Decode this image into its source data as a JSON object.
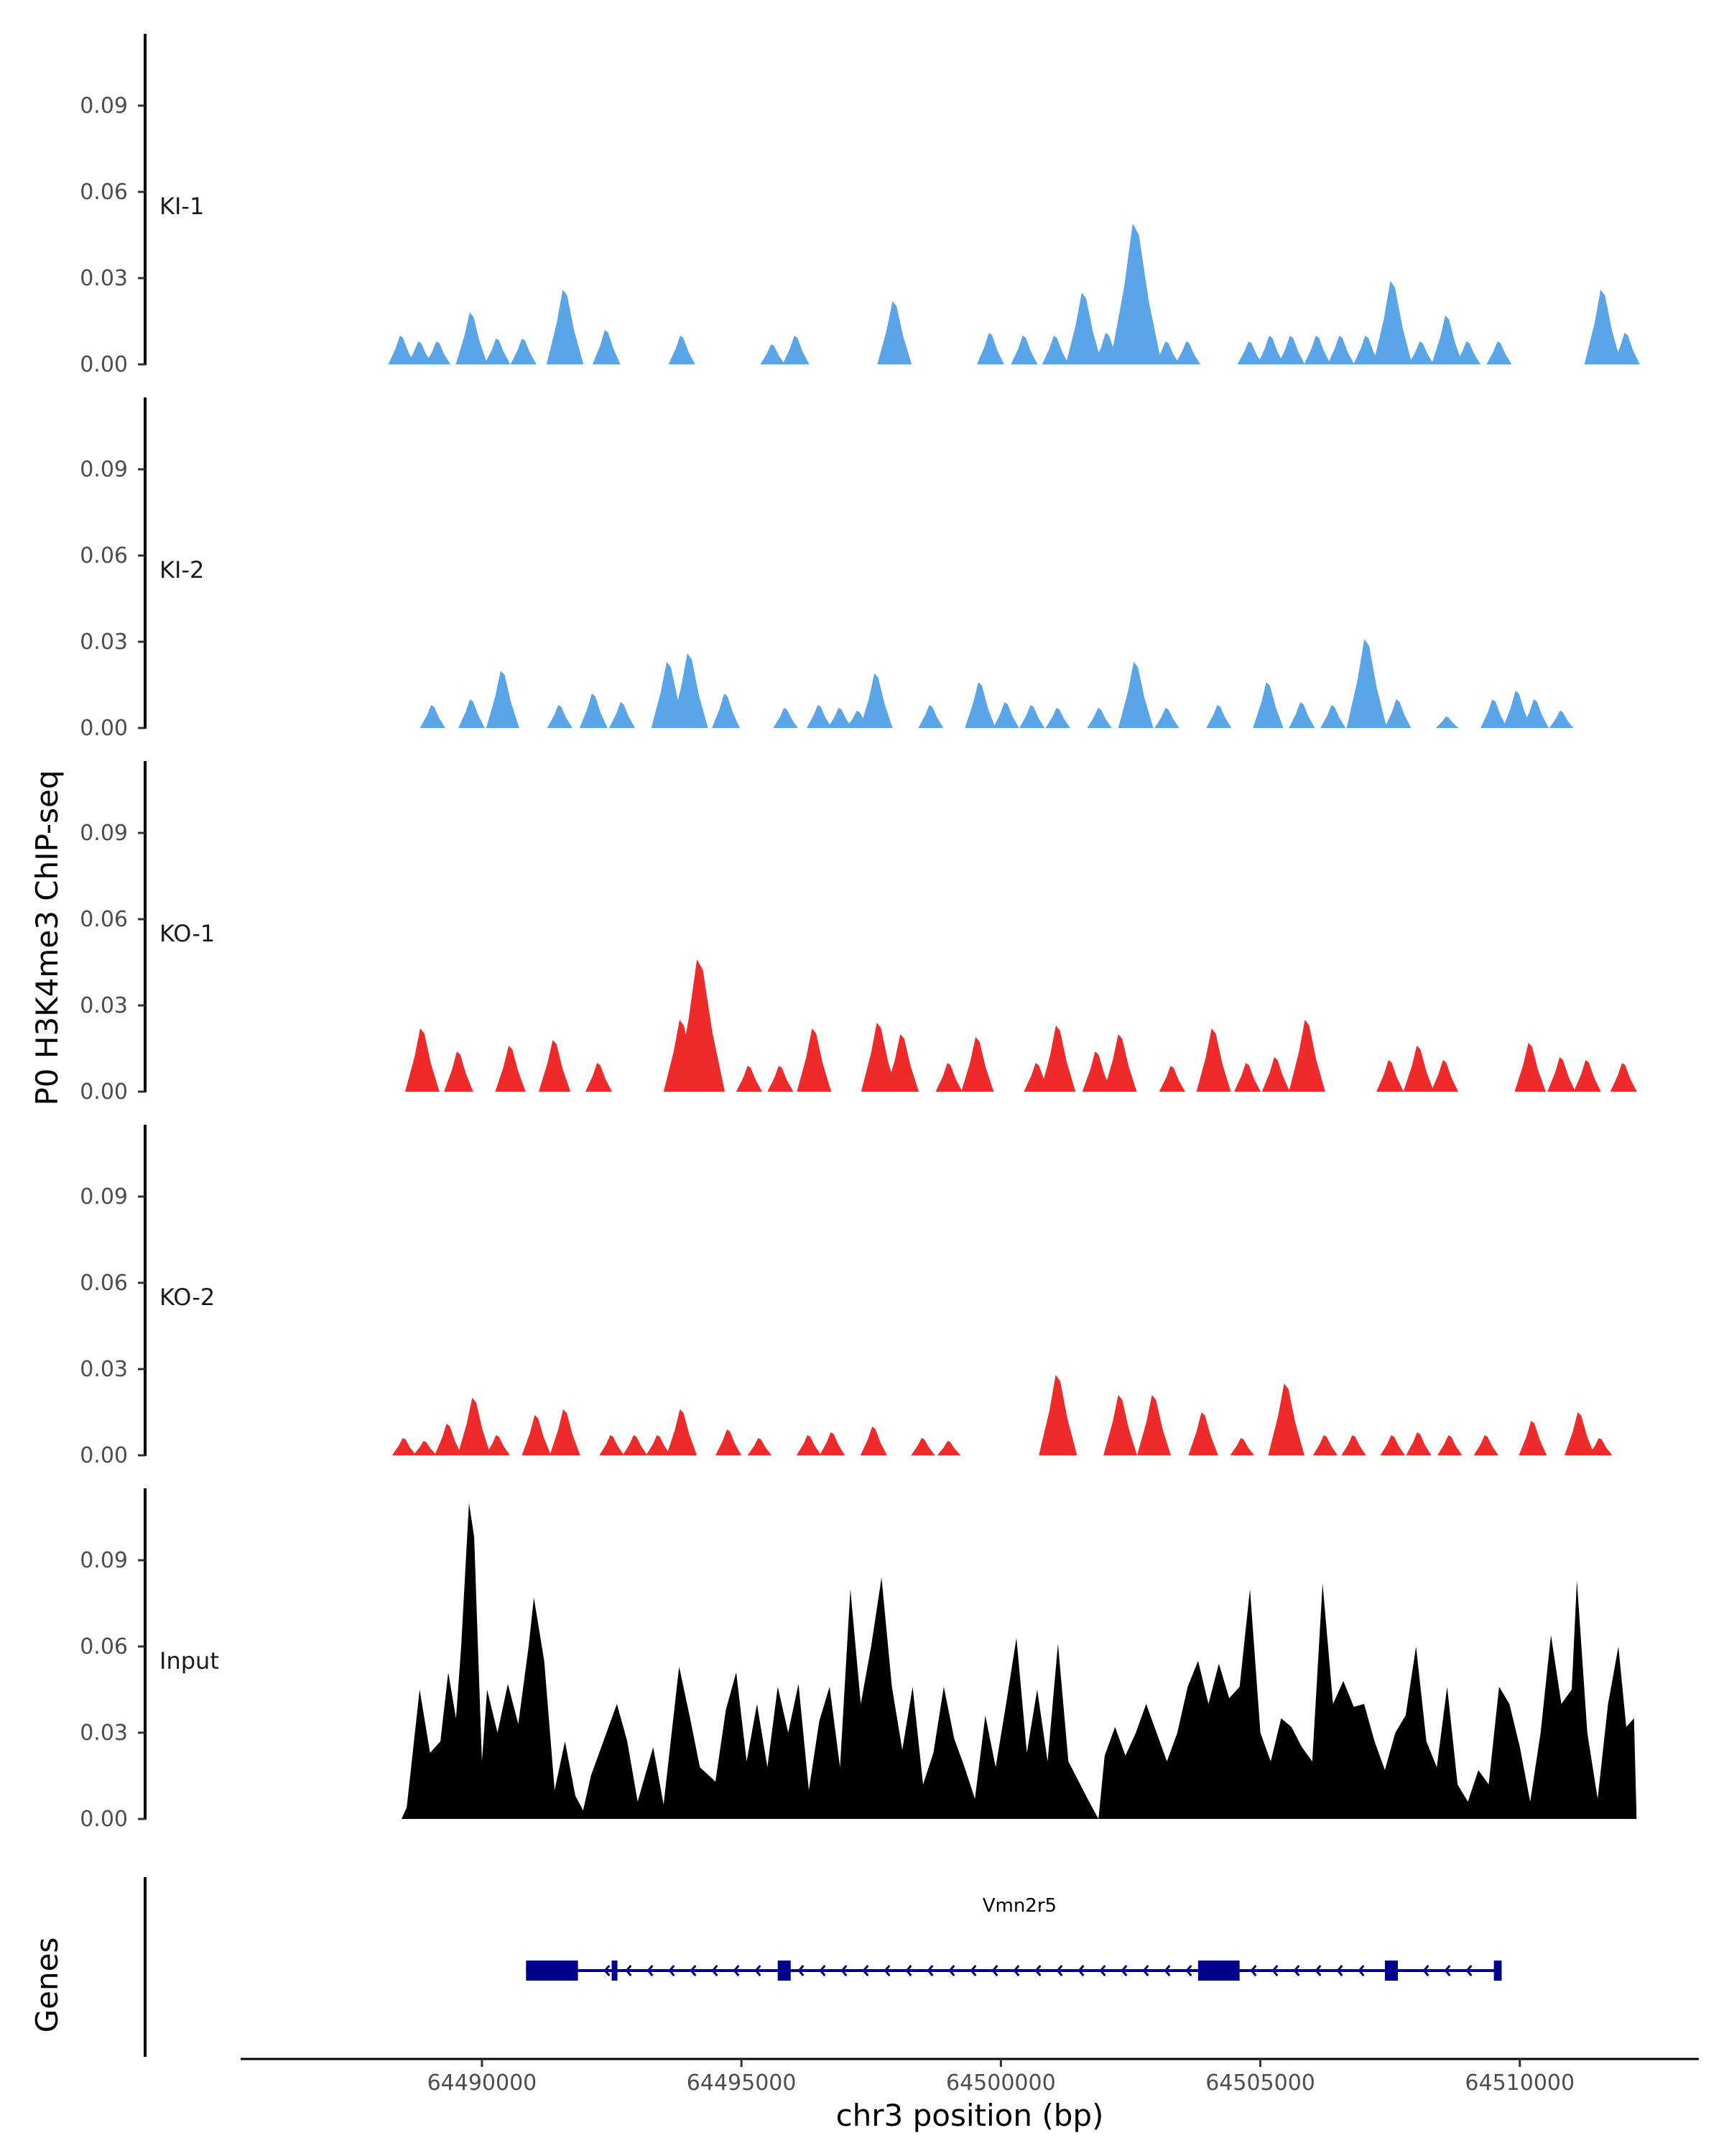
{
  "colors": {
    "KI": "#5aa5e8",
    "KO": "#ee2a2a",
    "Input": "#000000",
    "gene": "#00008b"
  },
  "chart_data": {
    "type": "area",
    "title": "",
    "ylabel": "P0 H3K4me3 ChIP-seq",
    "xlabel": "chr3 position (bp)",
    "xlim": [
      64485350,
      64513450
    ],
    "x_ticks": [
      64490000,
      64495000,
      64500000,
      64505000,
      64510000
    ],
    "x_tick_labels": [
      "64490000",
      "64495000",
      "64500000",
      "64505000",
      "64510000"
    ],
    "ylim": [
      0,
      0.1125
    ],
    "y_ticks": [
      0,
      0.03,
      0.06,
      0.09
    ],
    "y_tick_labels": [
      "0.00",
      "0.03",
      "0.06",
      "0.09"
    ],
    "series": [
      {
        "name": "KI-1",
        "color_key": "KI",
        "peaks": [
          [
            64488450,
            0.01
          ],
          [
            64488800,
            0.008
          ],
          [
            64489150,
            0.008
          ],
          [
            64489800,
            0.018
          ],
          [
            64490300,
            0.009
          ],
          [
            64490800,
            0.009
          ],
          [
            64491600,
            0.026
          ],
          [
            64492400,
            0.012
          ],
          [
            64493850,
            0.01
          ],
          [
            64495600,
            0.007
          ],
          [
            64496050,
            0.01
          ],
          [
            64497950,
            0.022
          ],
          [
            64499800,
            0.011
          ],
          [
            64500450,
            0.01
          ],
          [
            64501050,
            0.01
          ],
          [
            64501600,
            0.025
          ],
          [
            64502050,
            0.011
          ],
          [
            64502600,
            0.049
          ],
          [
            64503200,
            0.008
          ],
          [
            64503600,
            0.008
          ],
          [
            64504800,
            0.008
          ],
          [
            64505200,
            0.01
          ],
          [
            64505600,
            0.01
          ],
          [
            64506100,
            0.01
          ],
          [
            64506550,
            0.01
          ],
          [
            64507050,
            0.01
          ],
          [
            64507550,
            0.029
          ],
          [
            64508100,
            0.008
          ],
          [
            64508600,
            0.017
          ],
          [
            64509000,
            0.008
          ],
          [
            64509600,
            0.008
          ],
          [
            64511600,
            0.026
          ],
          [
            64512050,
            0.011
          ]
        ]
      },
      {
        "name": "KI-2",
        "color_key": "KI",
        "peaks": [
          [
            64489050,
            0.008
          ],
          [
            64489800,
            0.01
          ],
          [
            64490400,
            0.02
          ],
          [
            64491500,
            0.008
          ],
          [
            64492150,
            0.012
          ],
          [
            64492700,
            0.009
          ],
          [
            64493600,
            0.023
          ],
          [
            64494000,
            0.026
          ],
          [
            64494700,
            0.012
          ],
          [
            64495850,
            0.007
          ],
          [
            64496500,
            0.008
          ],
          [
            64496900,
            0.007
          ],
          [
            64497250,
            0.006
          ],
          [
            64497600,
            0.019
          ],
          [
            64498650,
            0.008
          ],
          [
            64499600,
            0.016
          ],
          [
            64500100,
            0.009
          ],
          [
            64500600,
            0.008
          ],
          [
            64501100,
            0.007
          ],
          [
            64501900,
            0.007
          ],
          [
            64502600,
            0.023
          ],
          [
            64503200,
            0.007
          ],
          [
            64504200,
            0.008
          ],
          [
            64505150,
            0.016
          ],
          [
            64505800,
            0.009
          ],
          [
            64506400,
            0.008
          ],
          [
            64507050,
            0.031
          ],
          [
            64507650,
            0.01
          ],
          [
            64508600,
            0.004
          ],
          [
            64509500,
            0.01
          ],
          [
            64509950,
            0.013
          ],
          [
            64510300,
            0.01
          ],
          [
            64510800,
            0.006
          ]
        ]
      },
      {
        "name": "KO-1",
        "color_key": "KO",
        "peaks": [
          [
            64488850,
            0.022
          ],
          [
            64489550,
            0.014
          ],
          [
            64490550,
            0.016
          ],
          [
            64491400,
            0.018
          ],
          [
            64492250,
            0.01
          ],
          [
            64493850,
            0.025
          ],
          [
            64494200,
            0.046
          ],
          [
            64495150,
            0.009
          ],
          [
            64495750,
            0.009
          ],
          [
            64496400,
            0.022
          ],
          [
            64497650,
            0.024
          ],
          [
            64498100,
            0.02
          ],
          [
            64499000,
            0.01
          ],
          [
            64499550,
            0.019
          ],
          [
            64500700,
            0.01
          ],
          [
            64501100,
            0.023
          ],
          [
            64501850,
            0.014
          ],
          [
            64502300,
            0.02
          ],
          [
            64503300,
            0.009
          ],
          [
            64504100,
            0.022
          ],
          [
            64504750,
            0.01
          ],
          [
            64505300,
            0.012
          ],
          [
            64505900,
            0.025
          ],
          [
            64507500,
            0.011
          ],
          [
            64508050,
            0.016
          ],
          [
            64508550,
            0.011
          ],
          [
            64510200,
            0.017
          ],
          [
            64510800,
            0.012
          ],
          [
            64511300,
            0.011
          ],
          [
            64512000,
            0.01
          ]
        ]
      },
      {
        "name": "KO-2",
        "color_key": "KO",
        "peaks": [
          [
            64488500,
            0.006
          ],
          [
            64488900,
            0.005
          ],
          [
            64489350,
            0.011
          ],
          [
            64489850,
            0.02
          ],
          [
            64490300,
            0.007
          ],
          [
            64491050,
            0.014
          ],
          [
            64491600,
            0.016
          ],
          [
            64492500,
            0.007
          ],
          [
            64492950,
            0.007
          ],
          [
            64493400,
            0.007
          ],
          [
            64493850,
            0.016
          ],
          [
            64494750,
            0.009
          ],
          [
            64495350,
            0.006
          ],
          [
            64496300,
            0.007
          ],
          [
            64496750,
            0.008
          ],
          [
            64497550,
            0.01
          ],
          [
            64498500,
            0.006
          ],
          [
            64499000,
            0.005
          ],
          [
            64501100,
            0.028
          ],
          [
            64502300,
            0.021
          ],
          [
            64502950,
            0.021
          ],
          [
            64503900,
            0.015
          ],
          [
            64504650,
            0.006
          ],
          [
            64505500,
            0.025
          ],
          [
            64506250,
            0.007
          ],
          [
            64506800,
            0.007
          ],
          [
            64507550,
            0.007
          ],
          [
            64508050,
            0.008
          ],
          [
            64508650,
            0.007
          ],
          [
            64509350,
            0.007
          ],
          [
            64510250,
            0.012
          ],
          [
            64511150,
            0.015
          ],
          [
            64511550,
            0.006
          ]
        ]
      },
      {
        "name": "Input",
        "color_key": "Input",
        "points": [
          [
            64488450,
            0.0
          ],
          [
            64488550,
            0.004
          ],
          [
            64488800,
            0.045
          ],
          [
            64489000,
            0.023
          ],
          [
            64489200,
            0.027
          ],
          [
            64489350,
            0.051
          ],
          [
            64489500,
            0.035
          ],
          [
            64489600,
            0.06
          ],
          [
            64489750,
            0.11
          ],
          [
            64489850,
            0.098
          ],
          [
            64490000,
            0.02
          ],
          [
            64490100,
            0.045
          ],
          [
            64490300,
            0.03
          ],
          [
            64490500,
            0.047
          ],
          [
            64490700,
            0.033
          ],
          [
            64490900,
            0.06
          ],
          [
            64491000,
            0.077
          ],
          [
            64491200,
            0.055
          ],
          [
            64491400,
            0.01
          ],
          [
            64491600,
            0.027
          ],
          [
            64491800,
            0.008
          ],
          [
            64491950,
            0.003
          ],
          [
            64492100,
            0.015
          ],
          [
            64492400,
            0.03
          ],
          [
            64492600,
            0.04
          ],
          [
            64492800,
            0.027
          ],
          [
            64493000,
            0.006
          ],
          [
            64493300,
            0.025
          ],
          [
            64493500,
            0.005
          ],
          [
            64493800,
            0.053
          ],
          [
            64494000,
            0.036
          ],
          [
            64494200,
            0.018
          ],
          [
            64494500,
            0.013
          ],
          [
            64494700,
            0.038
          ],
          [
            64494900,
            0.051
          ],
          [
            64495100,
            0.02
          ],
          [
            64495300,
            0.04
          ],
          [
            64495500,
            0.018
          ],
          [
            64495700,
            0.046
          ],
          [
            64495900,
            0.03
          ],
          [
            64496100,
            0.047
          ],
          [
            64496300,
            0.01
          ],
          [
            64496500,
            0.034
          ],
          [
            64496700,
            0.046
          ],
          [
            64496900,
            0.018
          ],
          [
            64497100,
            0.08
          ],
          [
            64497300,
            0.04
          ],
          [
            64497500,
            0.06
          ],
          [
            64497700,
            0.084
          ],
          [
            64497900,
            0.046
          ],
          [
            64498100,
            0.024
          ],
          [
            64498300,
            0.046
          ],
          [
            64498500,
            0.012
          ],
          [
            64498700,
            0.023
          ],
          [
            64498900,
            0.046
          ],
          [
            64499100,
            0.028
          ],
          [
            64499300,
            0.018
          ],
          [
            64499500,
            0.007
          ],
          [
            64499700,
            0.036
          ],
          [
            64499900,
            0.018
          ],
          [
            64500100,
            0.04
          ],
          [
            64500300,
            0.063
          ],
          [
            64500500,
            0.023
          ],
          [
            64500700,
            0.045
          ],
          [
            64500900,
            0.02
          ],
          [
            64501100,
            0.061
          ],
          [
            64501300,
            0.02
          ],
          [
            64501500,
            0.013
          ],
          [
            64501700,
            0.006
          ],
          [
            64501880,
            0.0
          ],
          [
            64502000,
            0.022
          ],
          [
            64502200,
            0.032
          ],
          [
            64502400,
            0.022
          ],
          [
            64502600,
            0.03
          ],
          [
            64502800,
            0.04
          ],
          [
            64503000,
            0.03
          ],
          [
            64503200,
            0.02
          ],
          [
            64503400,
            0.03
          ],
          [
            64503600,
            0.046
          ],
          [
            64503800,
            0.055
          ],
          [
            64504000,
            0.04
          ],
          [
            64504200,
            0.054
          ],
          [
            64504400,
            0.042
          ],
          [
            64504600,
            0.046
          ],
          [
            64504800,
            0.08
          ],
          [
            64505000,
            0.03
          ],
          [
            64505200,
            0.02
          ],
          [
            64505400,
            0.035
          ],
          [
            64505600,
            0.032
          ],
          [
            64505800,
            0.025
          ],
          [
            64506000,
            0.02
          ],
          [
            64506200,
            0.082
          ],
          [
            64506400,
            0.04
          ],
          [
            64506600,
            0.048
          ],
          [
            64506800,
            0.039
          ],
          [
            64507000,
            0.04
          ],
          [
            64507200,
            0.027
          ],
          [
            64507400,
            0.017
          ],
          [
            64507600,
            0.03
          ],
          [
            64507800,
            0.036
          ],
          [
            64508000,
            0.06
          ],
          [
            64508200,
            0.027
          ],
          [
            64508400,
            0.018
          ],
          [
            64508600,
            0.046
          ],
          [
            64508800,
            0.012
          ],
          [
            64509000,
            0.006
          ],
          [
            64509200,
            0.017
          ],
          [
            64509400,
            0.012
          ],
          [
            64509600,
            0.046
          ],
          [
            64509800,
            0.04
          ],
          [
            64510000,
            0.025
          ],
          [
            64510200,
            0.006
          ],
          [
            64510400,
            0.03
          ],
          [
            64510600,
            0.064
          ],
          [
            64510800,
            0.04
          ],
          [
            64511000,
            0.045
          ],
          [
            64511100,
            0.083
          ],
          [
            64511300,
            0.03
          ],
          [
            64511500,
            0.007
          ],
          [
            64511700,
            0.04
          ],
          [
            64511900,
            0.06
          ],
          [
            64512050,
            0.032
          ],
          [
            64512200,
            0.035
          ],
          [
            64512250,
            0.0
          ]
        ]
      }
    ],
    "genes_track": {
      "title": "Genes",
      "genes": [
        {
          "name": "Vmn2r5",
          "strand": "-",
          "start": 64490850,
          "end": 64509650,
          "exons": [
            [
              64490850,
              64491850
            ],
            [
              64492500,
              64492600
            ],
            [
              64495700,
              64495950
            ],
            [
              64503800,
              64504600
            ],
            [
              64507400,
              64507650
            ],
            [
              64509500,
              64509650
            ]
          ]
        }
      ]
    }
  }
}
